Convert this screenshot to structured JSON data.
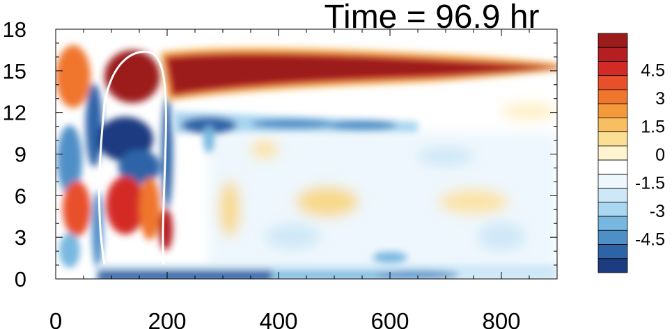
{
  "chart_data": {
    "type": "heatmap",
    "title": "Time = 96.9 hr",
    "xlabel": "",
    "ylabel": "",
    "xlim": [
      0,
      900
    ],
    "ylim": [
      0,
      18
    ],
    "x_ticks": [
      0,
      200,
      400,
      600,
      800
    ],
    "y_ticks": [
      0,
      3,
      6,
      9,
      12,
      15,
      18
    ],
    "colorbar": {
      "levels": [
        -5.25,
        -4.5,
        -3.75,
        -3,
        -2.25,
        -1.5,
        -0.75,
        0,
        0.75,
        1.5,
        2.25,
        3,
        3.75,
        4.5,
        5.25
      ],
      "tick_labels": [
        "4.5",
        "3",
        "1.5",
        "0",
        "-1.5",
        "-3",
        "-4.5"
      ],
      "colors": [
        "#9c1b1b",
        "#b51f22",
        "#d42a26",
        "#e8502a",
        "#f0762e",
        "#f59a3c",
        "#f8be62",
        "#fbdf94",
        "#fef4cf",
        "#ffffff",
        "#eef7fd",
        "#cfe8f7",
        "#a9d6f0",
        "#78b8e0",
        "#4f8fc8",
        "#2d64a8",
        "#1c3b80"
      ]
    },
    "features": [
      {
        "label": "upper positive band",
        "x": [
          200,
          900
        ],
        "y": [
          13.5,
          16.5
        ],
        "value": 5.5
      },
      {
        "label": "negative band below",
        "x": [
          200,
          600
        ],
        "y": [
          11,
          12.5
        ],
        "value": -3
      },
      {
        "label": "surface negative layer",
        "x": [
          90,
          900
        ],
        "y": [
          0,
          1
        ],
        "value": -3
      }
    ]
  }
}
